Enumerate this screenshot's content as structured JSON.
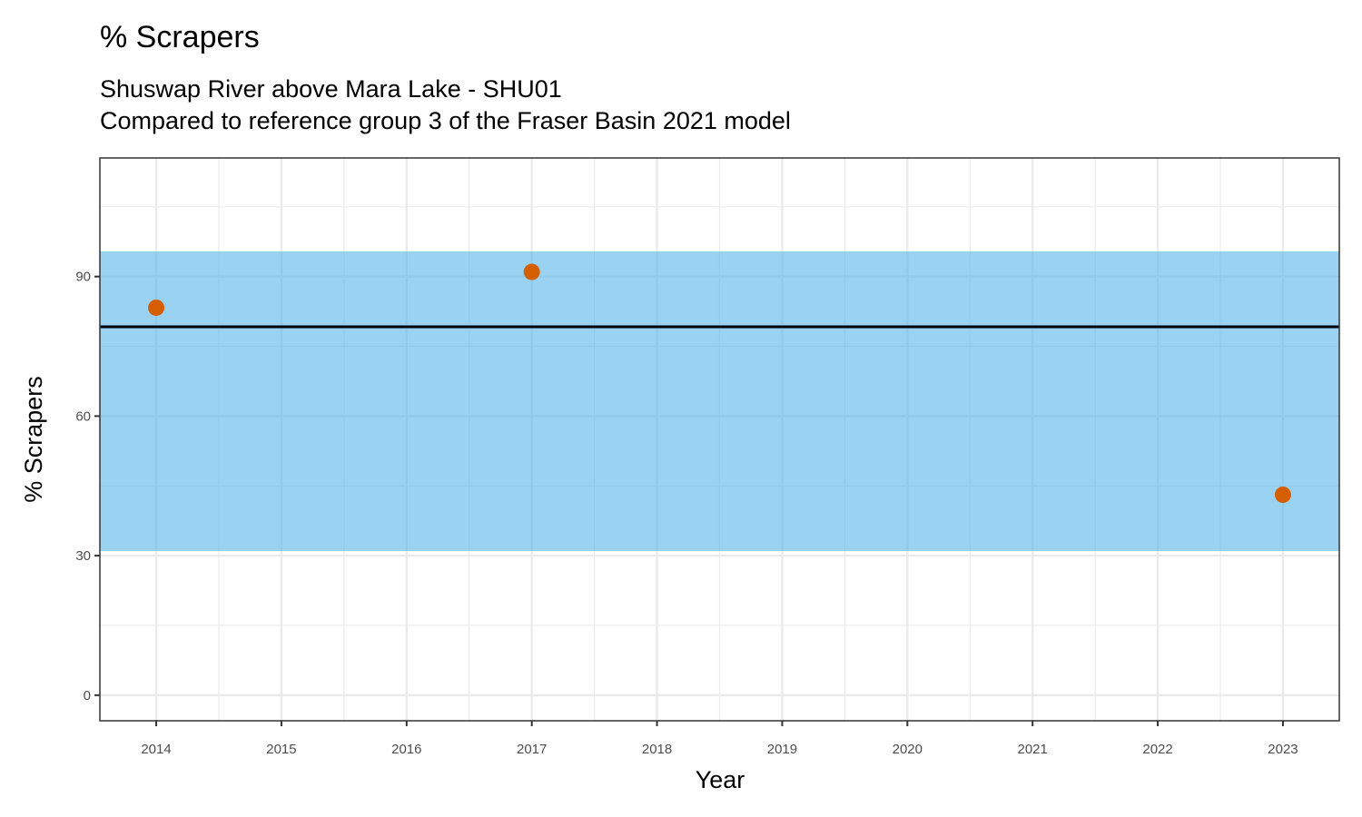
{
  "chart_data": {
    "type": "scatter",
    "title": "% Scrapers",
    "subtitle": [
      "Shuswap River above Mara Lake - SHU01",
      "Compared to reference group 3 of the Fraser Basin 2021 model"
    ],
    "x_label": "Year",
    "y_label": "% Scrapers",
    "series": [
      {
        "x": [
          2014,
          2017,
          2023
        ],
        "values": [
          83.3,
          91.0,
          43.1
        ],
        "color": "#D55E00"
      }
    ],
    "reference_band": {
      "lower": 31.0,
      "upper": 95.4,
      "color": "#56B4E9"
    },
    "reference_line": {
      "value": 79.2,
      "color": "#000000"
    },
    "xlim": [
      2013.55,
      2023.45
    ],
    "ylim": [
      -5.5,
      115.5
    ],
    "xticks": [
      2014,
      2015,
      2016,
      2017,
      2018,
      2019,
      2020,
      2021,
      2022,
      2023
    ],
    "yticks": [
      0,
      30,
      60,
      90
    ],
    "grid": true
  }
}
